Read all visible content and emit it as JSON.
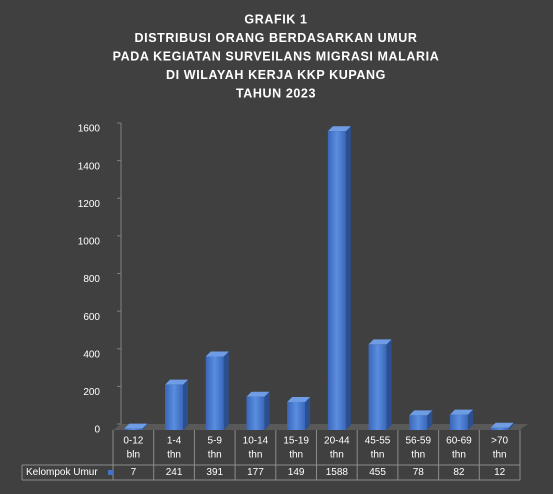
{
  "chart_data": {
    "type": "bar",
    "title": [
      "GRAFIK 1",
      "DISTRIBUSI ORANG BERDASARKAN UMUR",
      "PADA KEGIATAN SURVEILANS MIGRASI MALARIA",
      "DI WILAYAH KERJA KKP KUPANG",
      "TAHUN 2023"
    ],
    "categories": [
      [
        "0-12",
        "bln"
      ],
      [
        "1-4",
        "thn"
      ],
      [
        "5-9",
        "thn"
      ],
      [
        "10-14",
        "thn"
      ],
      [
        "15-19",
        "thn"
      ],
      [
        "20-44",
        "thn"
      ],
      [
        "45-55",
        "thn"
      ],
      [
        "56-59",
        "thn"
      ],
      [
        "60-69",
        "thn"
      ],
      [
        ">70",
        "thn"
      ]
    ],
    "series": [
      {
        "name": "Kelompok Umur",
        "color": "#4472c4",
        "values": [
          7,
          241,
          391,
          177,
          149,
          1588,
          455,
          78,
          82,
          12
        ]
      }
    ],
    "ylim": [
      0,
      1600
    ],
    "yticks": [
      0,
      200,
      400,
      600,
      800,
      1000,
      1200,
      1400,
      1600
    ],
    "grid": false,
    "data_table": true
  }
}
